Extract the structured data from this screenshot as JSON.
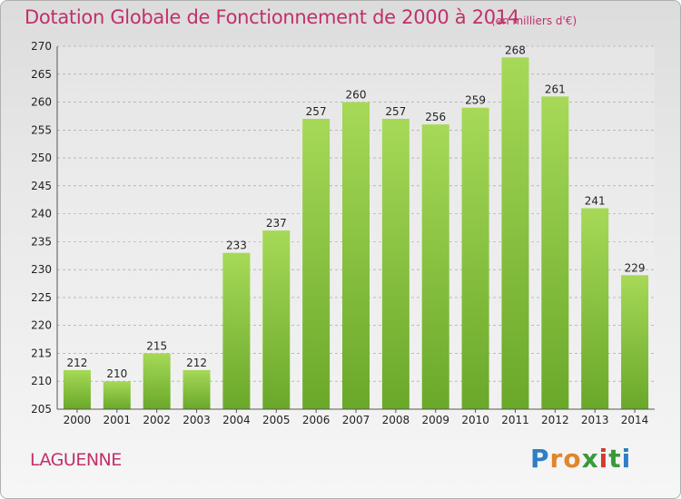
{
  "header": {
    "title": "Dotation Globale de Fonctionnement de 2000 à 2014",
    "unit": "(en milliers d'€)"
  },
  "footer": {
    "place": "LAGUENNE",
    "logo_text": "Proxiti",
    "logo_letters": [
      "P",
      "r",
      "o",
      "x",
      "i",
      "t",
      "i"
    ],
    "logo_colors": [
      "#2e7fc4",
      "#e0862b",
      "#e0862b",
      "#3a9a3a",
      "#d43a2f",
      "#3a9a3a",
      "#2e7fc4"
    ]
  },
  "colors": {
    "bar_light": "#a6d957",
    "bar_dark": "#6aa82a",
    "text_accent": "#c0306a",
    "axis_text": "#222222"
  },
  "chart_data": {
    "type": "bar",
    "title": "Dotation Globale de Fonctionnement de 2000 à 2014",
    "subtitle": "(en milliers d'€)",
    "xlabel": "",
    "ylabel": "",
    "categories": [
      "2000",
      "2001",
      "2002",
      "2003",
      "2004",
      "2005",
      "2006",
      "2007",
      "2008",
      "2009",
      "2010",
      "2011",
      "2012",
      "2013",
      "2014"
    ],
    "values": [
      212,
      210,
      215,
      212,
      233,
      237,
      257,
      260,
      257,
      256,
      259,
      268,
      261,
      241,
      229
    ],
    "ylim": [
      205,
      270
    ],
    "yticks": [
      205,
      210,
      215,
      220,
      225,
      230,
      235,
      240,
      245,
      250,
      255,
      260,
      265,
      270
    ],
    "grid": true,
    "legend": "none"
  }
}
